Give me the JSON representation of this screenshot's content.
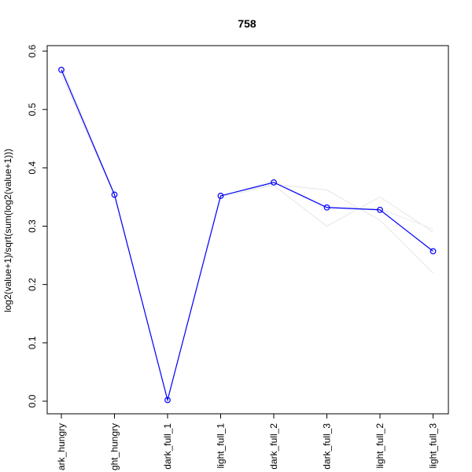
{
  "chart_data": {
    "type": "line",
    "title": "758",
    "xlabel": "",
    "ylabel": "log2(value+1)/sqrt(sum(log2(value+1)))",
    "categories": [
      "dark_hungry",
      "light_hungry",
      "dark_full_1",
      "light_full_1",
      "dark_full_2",
      "dark_full_3",
      "light_full_2",
      "light_full_3"
    ],
    "category_labels_as_shown": [
      "ark_hungry",
      "ght_hungry",
      "dark_full_1",
      "light_full_1",
      "dark_full_2",
      "dark_full_3",
      "light_full_2",
      "light_full_3"
    ],
    "ylim": [
      0.0,
      0.6
    ],
    "yticks": [
      0.0,
      0.1,
      0.2,
      0.3,
      0.4,
      0.5,
      0.6
    ],
    "ytick_labels": [
      "0.0",
      "0.1",
      "0.2",
      "0.3",
      "0.4",
      "0.5",
      "0.6"
    ],
    "grid": false,
    "series": [
      {
        "values": [
          0.568,
          0.354,
          0.002,
          0.352,
          0.375,
          0.332,
          0.328,
          0.257
        ],
        "color": "#0000ff",
        "markers": "open-circle"
      }
    ],
    "background_series": [
      {
        "values": [
          0.575,
          0.355,
          0.002,
          0.35,
          0.37,
          0.3,
          0.35,
          0.29
        ],
        "color": "#e6e6e6"
      },
      {
        "values": [
          0.56,
          0.352,
          0.002,
          0.353,
          0.372,
          0.362,
          0.31,
          0.22
        ],
        "color": "#e6e6e6"
      },
      {
        "values": [
          0.57,
          0.356,
          0.002,
          0.351,
          0.378,
          0.333,
          0.33,
          0.295
        ],
        "color": "#ececec"
      }
    ]
  }
}
